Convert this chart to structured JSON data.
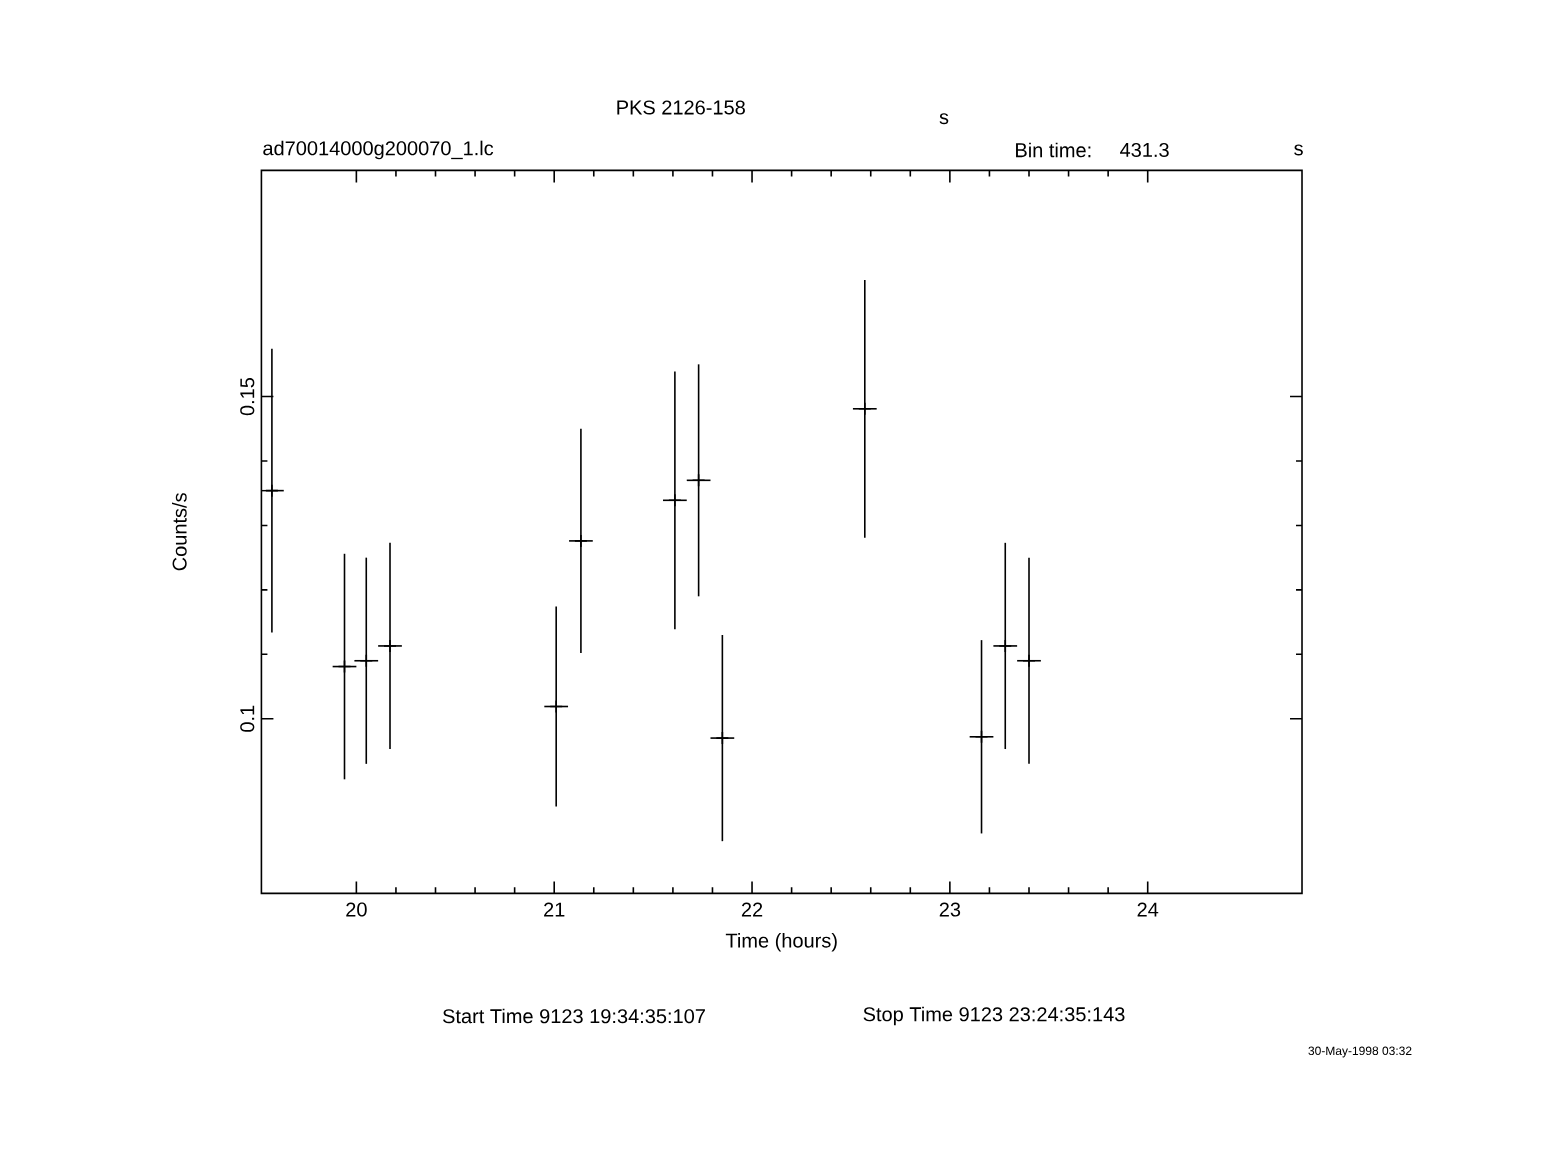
{
  "chart_data": {
    "type": "scatter",
    "title": "PKS 2126-158",
    "xlabel": "Time (hours)",
    "ylabel": "Counts/s",
    "x": [
      19.573,
      19.94,
      20.05,
      20.17,
      21.01,
      21.135,
      21.61,
      21.73,
      21.85,
      22.57,
      23.16,
      23.28,
      23.4
    ],
    "values": [
      0.1354,
      0.1081,
      0.109,
      0.1113,
      0.1019,
      0.1276,
      0.1339,
      0.137,
      0.097,
      0.1481,
      0.0972,
      0.1113,
      0.109
    ],
    "errors": [
      0.022,
      0.0175,
      0.016,
      0.016,
      0.0155,
      0.0174,
      0.02,
      0.018,
      0.016,
      0.02,
      0.015,
      0.016,
      0.016
    ],
    "xerrors": [
      0.06,
      0.06,
      0.06,
      0.06,
      0.06,
      0.06,
      0.06,
      0.06,
      0.06,
      0.06,
      0.06,
      0.06,
      0.06
    ],
    "color": "#000000",
    "marker": "cross",
    "xlim": [
      19.52,
      24.78
    ],
    "ylim": [
      0.0729,
      0.1851
    ],
    "xticks": [
      20,
      21,
      22,
      23,
      24
    ],
    "yticks": [
      0.1,
      0.15
    ],
    "annotations": [
      "s",
      "ad70014000g200070_1.lc",
      "Bin time:",
      "431.3",
      "s",
      "Start Time  9123 19:34:35:107",
      "Stop Time  9123 23:24:35:143",
      "30-May-1998 03:32"
    ]
  }
}
